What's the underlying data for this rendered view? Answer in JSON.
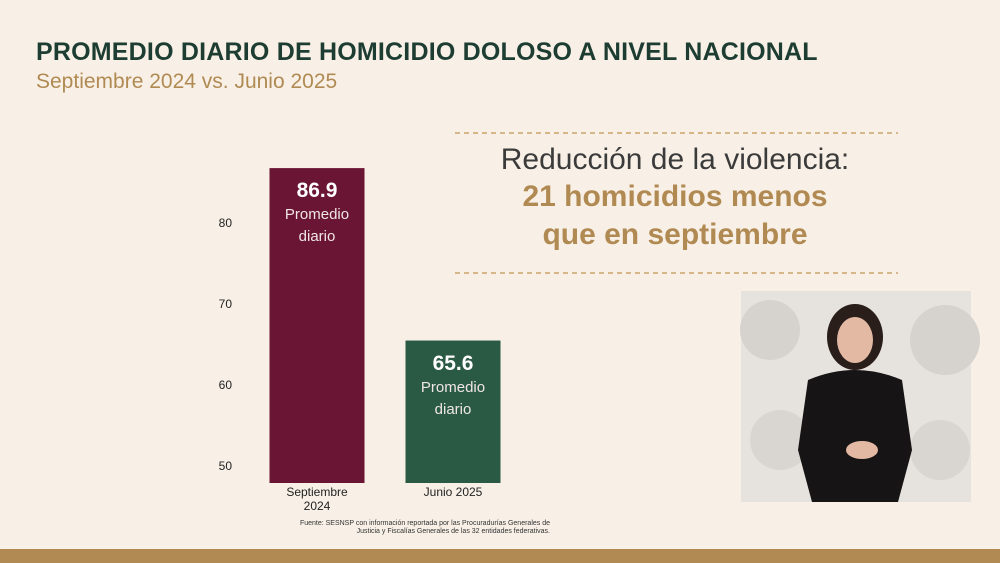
{
  "header": {
    "title": "PROMEDIO DIARIO DE HOMICIDIO DOLOSO A NIVEL NACIONAL",
    "subtitle": "Septiembre 2024 vs. Junio 2025"
  },
  "chart_data": {
    "type": "bar",
    "categories": [
      "Septiembre 2024",
      "Junio 2025"
    ],
    "values": [
      86.9,
      65.6
    ],
    "colors": [
      "#6a1533",
      "#2b5a44"
    ],
    "value_sublabel": "Promedio diario",
    "ylim": [
      48,
      90
    ],
    "yticks": [
      50,
      60,
      70,
      80
    ]
  },
  "callout": {
    "line1": "Reducción de la violencia:",
    "line2": "21 homicidios menos",
    "line3": "que en septiembre"
  },
  "source": "Fuente: SESNSP con información reportada por las Procuradurías Generales de Justicia y Fiscalías Generales de las 32 entidades federativas."
}
